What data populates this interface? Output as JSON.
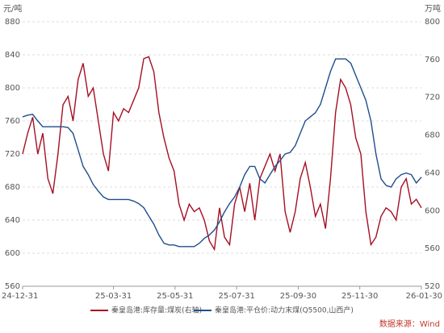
{
  "chart_data": {
    "type": "line",
    "ylabel": "元/吨",
    "y2label": "万吨",
    "source": "数据来源：Wind",
    "x": [
      "24-12-31",
      "25-01-05",
      "25-01-10",
      "25-01-15",
      "25-01-20",
      "25-01-25",
      "25-01-30",
      "25-02-04",
      "25-02-09",
      "25-02-14",
      "25-02-19",
      "25-02-24",
      "25-03-01",
      "25-03-06",
      "25-03-11",
      "25-03-16",
      "25-03-21",
      "25-03-26",
      "25-03-31",
      "25-04-05",
      "25-04-10",
      "25-04-15",
      "25-04-20",
      "25-04-25",
      "25-04-30",
      "25-05-05",
      "25-05-10",
      "25-05-15",
      "25-05-20",
      "25-05-25",
      "25-05-30",
      "25-06-04",
      "25-06-09",
      "25-06-14",
      "25-06-19",
      "25-06-24",
      "25-06-29",
      "25-07-04",
      "25-07-09",
      "25-07-14",
      "25-07-19",
      "25-07-24",
      "25-07-29",
      "25-08-03",
      "25-08-08",
      "25-08-13",
      "25-08-18",
      "25-08-23",
      "25-08-28",
      "25-09-02",
      "25-09-07",
      "25-09-12",
      "25-09-17",
      "25-09-22",
      "25-09-27",
      "25-10-02",
      "25-10-07",
      "25-10-12",
      "25-10-17",
      "25-10-22",
      "25-10-27",
      "25-11-01",
      "25-11-06",
      "25-11-11",
      "25-11-16",
      "25-11-21",
      "25-11-26",
      "25-12-01",
      "25-12-06",
      "25-12-11",
      "25-12-16",
      "25-12-21",
      "25-12-26",
      "25-12-31",
      "26-01-05",
      "26-01-10",
      "26-01-15",
      "26-01-20",
      "26-01-25",
      "26-01-30"
    ],
    "xlim": [
      "24-12-31",
      "26-01-30"
    ],
    "xticks": [
      "24-12-31",
      "25-03-31",
      "25-05-31",
      "25-07-31",
      "25-09-30",
      "25-11-30",
      "26-01-30"
    ],
    "ylim": [
      560,
      880
    ],
    "yticks": [
      560,
      600,
      640,
      680,
      720,
      760,
      800,
      840,
      880
    ],
    "y2lim": [
      520,
      800
    ],
    "y2ticks": [
      520,
      560,
      600,
      640,
      680,
      720,
      760,
      800
    ],
    "grid": true,
    "series": [
      {
        "name": "秦皇岛港:库存量:煤炭(右轴)",
        "color": "#a50f23",
        "axis": "y2",
        "values": [
          660,
          682,
          699,
          660,
          682,
          634,
          618,
          660,
          712,
          721,
          695,
          739,
          756,
          721,
          730,
          695,
          660,
          642,
          704,
          695,
          708,
          704,
          717,
          730,
          761,
          763,
          747,
          704,
          677,
          656,
          642,
          607,
          590,
          607,
          599,
          603,
          590,
          568,
          559,
          603,
          572,
          564,
          607,
          625,
          599,
          629,
          590,
          634,
          647,
          660,
          642,
          660,
          599,
          577,
          599,
          634,
          651,
          625,
          594,
          607,
          581,
          634,
          704,
          739,
          730,
          712,
          677,
          660,
          599,
          564,
          572,
          594,
          603,
          599,
          590,
          625,
          634,
          607,
          612,
          603
        ]
      },
      {
        "name": "秦皇岛港:平仓价:动力末煤(Q5500,山西产)",
        "color": "#1f4e8c",
        "values": [
          765,
          767,
          768,
          760,
          753,
          753,
          753,
          753,
          753,
          752,
          745,
          725,
          705,
          695,
          683,
          675,
          668,
          665,
          665,
          665,
          665,
          665,
          663,
          660,
          655,
          645,
          635,
          622,
          612,
          610,
          610,
          608,
          608,
          608,
          608,
          612,
          618,
          622,
          628,
          638,
          650,
          660,
          668,
          680,
          695,
          705,
          705,
          690,
          685,
          695,
          705,
          712,
          720,
          722,
          730,
          745,
          760,
          765,
          770,
          780,
          800,
          820,
          835,
          835,
          835,
          830,
          815,
          800,
          785,
          760,
          720,
          690,
          682,
          680,
          690,
          695,
          697,
          695,
          685,
          692
        ]
      }
    ]
  }
}
